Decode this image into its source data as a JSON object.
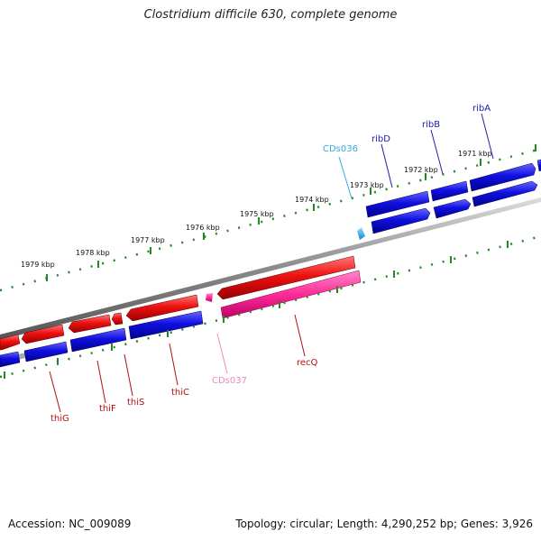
{
  "header": {
    "title": "Clostridium difficile 630, complete genome"
  },
  "footer": {
    "accession": "Accession: NC_009089",
    "topology": "Topology: circular; Length: 4,290,252 bp; Genes: 3,926"
  },
  "scale_labels": [
    "1979 kbp",
    "1978 kbp",
    "1977 kbp",
    "1976 kbp",
    "1975 kbp",
    "1974 kbp",
    "1973 kbp",
    "1972 kbp",
    "1971 kbp"
  ],
  "gene_labels": {
    "forward": [
      "CDs036",
      "ribD",
      "ribB",
      "ribA"
    ],
    "reverse": [
      "thiG",
      "thiF",
      "thiS",
      "thiC",
      "CDs037",
      "recQ"
    ]
  },
  "colors": {
    "cds_forward": "#1010e0",
    "cds_reverse": "#e80c0c",
    "other_forward": "#33aaee",
    "other_reverse": "#ff3399",
    "scale_ticks": "#228822",
    "backbone": "#888888",
    "label_forward": "#1a1aa8",
    "label_reverse": "#b01010",
    "label_other_forward": "#33aadd",
    "label_other_reverse": "#ee88bb"
  }
}
